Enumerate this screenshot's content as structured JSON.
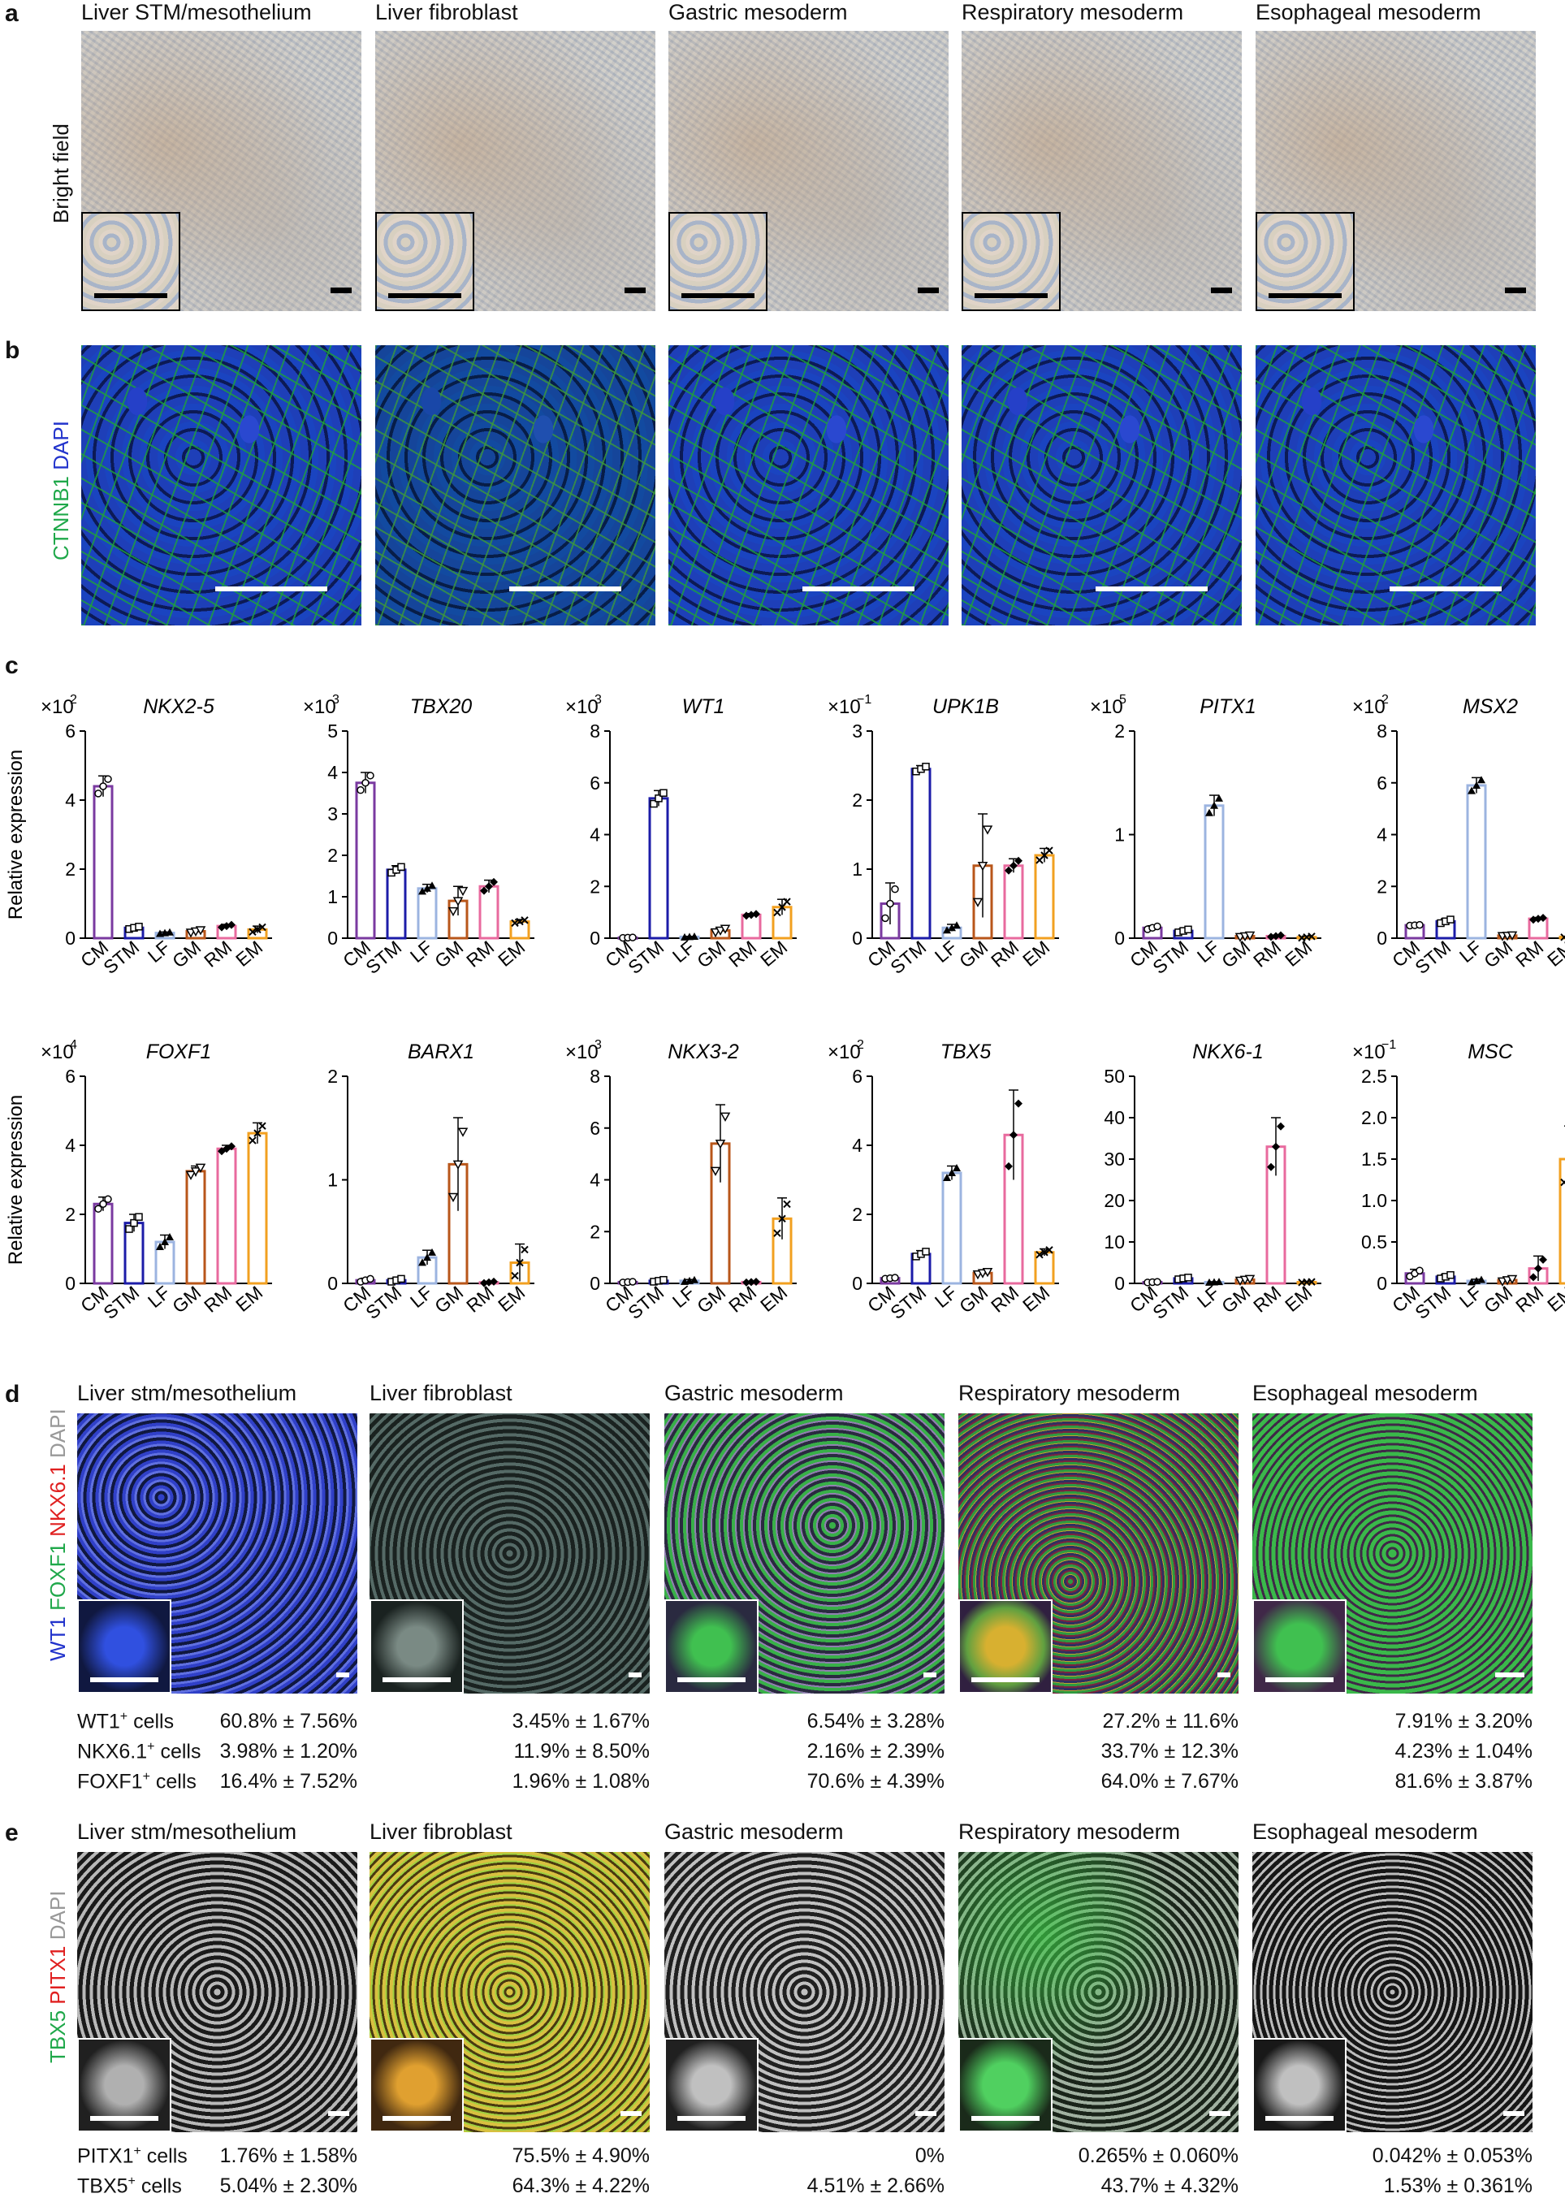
{
  "panels": {
    "a": "a",
    "b": "b",
    "c": "c",
    "d": "d",
    "e": "e"
  },
  "a": {
    "row_label": "Bright field",
    "titles": [
      "Liver STM/mesothelium",
      "Liver fibroblast",
      "Gastric mesoderm",
      "Respiratory mesoderm",
      "Esophageal mesoderm"
    ]
  },
  "b": {
    "row_label_1": "CTNNB1",
    "row_label_2": "DAPI",
    "colors": {
      "ctnnb1": "#1fa84a",
      "dapi": "#2233cc"
    }
  },
  "d": {
    "titles": [
      "Liver stm/mesothelium",
      "Liver fibroblast",
      "Gastric mesoderm",
      "Respiratory mesoderm",
      "Esophageal mesoderm"
    ],
    "row_label_parts": [
      "WT1",
      "FOXF1",
      "NKX6.1",
      "DAPI"
    ],
    "stat_labels": [
      "WT1",
      "NKX6.1",
      "FOXF1"
    ],
    "stat_suffix": " cells",
    "stats": [
      [
        "60.8% ± 7.56%",
        "3.45% ± 1.67%",
        "6.54% ± 3.28%",
        "27.2% ± 11.6%",
        "7.91% ± 3.20%"
      ],
      [
        "3.98% ± 1.20%",
        "11.9% ± 8.50%",
        "2.16% ± 2.39%",
        "33.7% ± 12.3%",
        "4.23% ± 1.04%"
      ],
      [
        "16.4% ± 7.52%",
        "1.96% ± 1.08%",
        "70.6% ± 4.39%",
        "64.0% ± 7.67%",
        "81.6% ± 3.87%"
      ]
    ]
  },
  "e": {
    "titles": [
      "Liver stm/mesothelium",
      "Liver fibroblast",
      "Gastric mesoderm",
      "Respiratory mesoderm",
      "Esophageal mesoderm"
    ],
    "row_label_parts": [
      "TBX5",
      "PITX1",
      "DAPI"
    ],
    "stat_labels": [
      "PITX1",
      "TBX5"
    ],
    "stat_suffix": " cells",
    "stats": [
      [
        "1.76% ± 1.58%",
        "75.5% ± 4.90%",
        "0%",
        "0.265% ± 0.060%",
        "0.042% ± 0.053%"
      ],
      [
        "5.04% ± 2.30%",
        "64.3% ± 4.22%",
        "4.51% ± 2.66%",
        "43.7% ± 4.32%",
        "1.53% ± 0.361%"
      ]
    ]
  },
  "chart_data": [
    {
      "type": "bar",
      "title": "NKX2-5",
      "multiplier": "×10",
      "exp": "2",
      "ylabel": "Relative expression",
      "categories": [
        "CM",
        "STM",
        "LF",
        "GM",
        "RM",
        "EM"
      ],
      "values": [
        4.4,
        0.3,
        0.15,
        0.2,
        0.35,
        0.25
      ],
      "errors": [
        0.3,
        0.05,
        0.03,
        0.05,
        0.05,
        0.1
      ],
      "ylim": [
        0,
        6
      ],
      "yticks": [
        "0",
        "2",
        "4",
        "6"
      ],
      "tickvals": [
        0,
        2,
        4,
        6
      ]
    },
    {
      "type": "bar",
      "title": "TBX20",
      "multiplier": "×10",
      "exp": "3",
      "ylabel": "",
      "categories": [
        "CM",
        "STM",
        "LF",
        "GM",
        "RM",
        "EM"
      ],
      "values": [
        3.75,
        1.65,
        1.2,
        0.9,
        1.25,
        0.4
      ],
      "errors": [
        0.25,
        0.1,
        0.1,
        0.35,
        0.15,
        0.05
      ],
      "ylim": [
        0,
        5
      ],
      "yticks": [
        "0",
        "1",
        "2",
        "3",
        "4",
        "5"
      ],
      "tickvals": [
        0,
        1,
        2,
        3,
        4,
        5
      ]
    },
    {
      "type": "bar",
      "title": "WT1",
      "multiplier": "×10",
      "exp": "3",
      "ylabel": "",
      "categories": [
        "CM",
        "STM",
        "LF",
        "GM",
        "RM",
        "EM"
      ],
      "values": [
        0.02,
        5.4,
        0.05,
        0.3,
        0.9,
        1.2
      ],
      "errors": [
        0.01,
        0.3,
        0.02,
        0.1,
        0.05,
        0.3
      ],
      "ylim": [
        0,
        8
      ],
      "yticks": [
        "0",
        "2",
        "4",
        "6",
        "8"
      ],
      "tickvals": [
        0,
        2,
        4,
        6,
        8
      ]
    },
    {
      "type": "bar",
      "title": "UPK1B",
      "multiplier": "×10",
      "exp": "−1",
      "ylabel": "",
      "categories": [
        "CM",
        "STM",
        "LF",
        "GM",
        "RM",
        "EM"
      ],
      "values": [
        0.5,
        2.45,
        0.15,
        1.05,
        1.05,
        1.2
      ],
      "errors": [
        0.3,
        0.05,
        0.05,
        0.75,
        0.1,
        0.1
      ],
      "ylim": [
        0,
        3
      ],
      "yticks": [
        "0",
        "1",
        "2",
        "3"
      ],
      "tickvals": [
        0,
        1,
        2,
        3
      ]
    },
    {
      "type": "bar",
      "title": "PITX1",
      "multiplier": "×10",
      "exp": "5",
      "ylabel": "",
      "categories": [
        "CM",
        "STM",
        "LF",
        "GM",
        "RM",
        "EM"
      ],
      "values": [
        0.1,
        0.07,
        1.28,
        0.02,
        0.02,
        0.01
      ],
      "errors": [
        0.02,
        0.02,
        0.1,
        0.01,
        0.01,
        0.01
      ],
      "ylim": [
        0,
        2
      ],
      "yticks": [
        "0",
        "1",
        "2"
      ],
      "tickvals": [
        0,
        1,
        2
      ]
    },
    {
      "type": "bar",
      "title": "MSX2",
      "multiplier": "×10",
      "exp": "2",
      "ylabel": "",
      "categories": [
        "CM",
        "STM",
        "LF",
        "GM",
        "RM",
        "EM"
      ],
      "values": [
        0.5,
        0.65,
        5.9,
        0.1,
        0.75,
        0.05
      ],
      "errors": [
        0.02,
        0.1,
        0.3,
        0.02,
        0.05,
        0.02
      ],
      "ylim": [
        0,
        8
      ],
      "yticks": [
        "0",
        "2",
        "4",
        "6",
        "8"
      ],
      "tickvals": [
        0,
        2,
        4,
        6,
        8
      ]
    },
    {
      "type": "bar",
      "title": "FOXF1",
      "multiplier": "×10",
      "exp": "4",
      "ylabel": "Relative expression",
      "categories": [
        "CM",
        "STM",
        "LF",
        "GM",
        "RM",
        "EM"
      ],
      "values": [
        2.3,
        1.75,
        1.2,
        3.25,
        3.9,
        4.35
      ],
      "errors": [
        0.2,
        0.25,
        0.2,
        0.15,
        0.1,
        0.3
      ],
      "ylim": [
        0,
        6
      ],
      "yticks": [
        "0",
        "2",
        "4",
        "6"
      ],
      "tickvals": [
        0,
        2,
        4,
        6
      ]
    },
    {
      "type": "bar",
      "title": "BARX1",
      "multiplier": "",
      "exp": "",
      "ylabel": "",
      "categories": [
        "CM",
        "STM",
        "LF",
        "GM",
        "RM",
        "EM"
      ],
      "values": [
        0.03,
        0.03,
        0.25,
        1.15,
        0.01,
        0.2
      ],
      "errors": [
        0.02,
        0.02,
        0.07,
        0.45,
        0.01,
        0.18
      ],
      "ylim": [
        0,
        2
      ],
      "yticks": [
        "0",
        "1",
        "2"
      ],
      "tickvals": [
        0,
        1,
        2
      ]
    },
    {
      "type": "bar",
      "title": "NKX3-2",
      "multiplier": "×10",
      "exp": "3",
      "ylabel": "",
      "categories": [
        "CM",
        "STM",
        "LF",
        "GM",
        "RM",
        "EM"
      ],
      "values": [
        0.05,
        0.1,
        0.1,
        5.4,
        0.05,
        2.5
      ],
      "errors": [
        0.02,
        0.05,
        0.05,
        1.5,
        0.02,
        0.8
      ],
      "ylim": [
        0,
        8
      ],
      "yticks": [
        "0",
        "2",
        "4",
        "6",
        "8"
      ],
      "tickvals": [
        0,
        2,
        4,
        6,
        8
      ]
    },
    {
      "type": "bar",
      "title": "TBX5",
      "multiplier": "×10",
      "exp": "2",
      "ylabel": "",
      "categories": [
        "CM",
        "STM",
        "LF",
        "GM",
        "RM",
        "EM"
      ],
      "values": [
        0.15,
        0.85,
        3.2,
        0.3,
        4.3,
        0.9
      ],
      "errors": [
        0.02,
        0.1,
        0.2,
        0.05,
        1.3,
        0.1
      ],
      "ylim": [
        0,
        6
      ],
      "yticks": [
        "0",
        "2",
        "4",
        "6"
      ],
      "tickvals": [
        0,
        2,
        4,
        6
      ]
    },
    {
      "type": "bar",
      "title": "NKX6-1",
      "multiplier": "",
      "exp": "",
      "ylabel": "",
      "categories": [
        "CM",
        "STM",
        "LF",
        "GM",
        "RM",
        "EM"
      ],
      "values": [
        0.3,
        1.2,
        0.3,
        0.9,
        33,
        0.3
      ],
      "errors": [
        0.1,
        0.3,
        0.1,
        0.3,
        7,
        0.1
      ],
      "ylim": [
        0,
        50
      ],
      "yticks": [
        "0",
        "10",
        "20",
        "30",
        "40",
        "50"
      ],
      "tickvals": [
        0,
        10,
        20,
        30,
        40,
        50
      ]
    },
    {
      "type": "bar",
      "title": "MSC",
      "multiplier": "×10",
      "exp": "−1",
      "ylabel": "",
      "categories": [
        "CM",
        "STM",
        "LF",
        "GM",
        "RM",
        "EM"
      ],
      "values": [
        0.12,
        0.08,
        0.03,
        0.04,
        0.18,
        1.5
      ],
      "errors": [
        0.05,
        0.03,
        0.02,
        0.02,
        0.15,
        0.4
      ],
      "ylim": [
        0,
        2.5
      ],
      "yticks": [
        "0",
        "0.5",
        "1.0",
        "1.5",
        "2.0",
        "2.5"
      ],
      "tickvals": [
        0,
        0.5,
        1.0,
        1.5,
        2.0,
        2.5
      ]
    }
  ],
  "bar_colors": [
    "#7a3aa0",
    "#1c1ca8",
    "#9cb4e0",
    "#b8561a",
    "#e86a9e",
    "#f2a020"
  ]
}
